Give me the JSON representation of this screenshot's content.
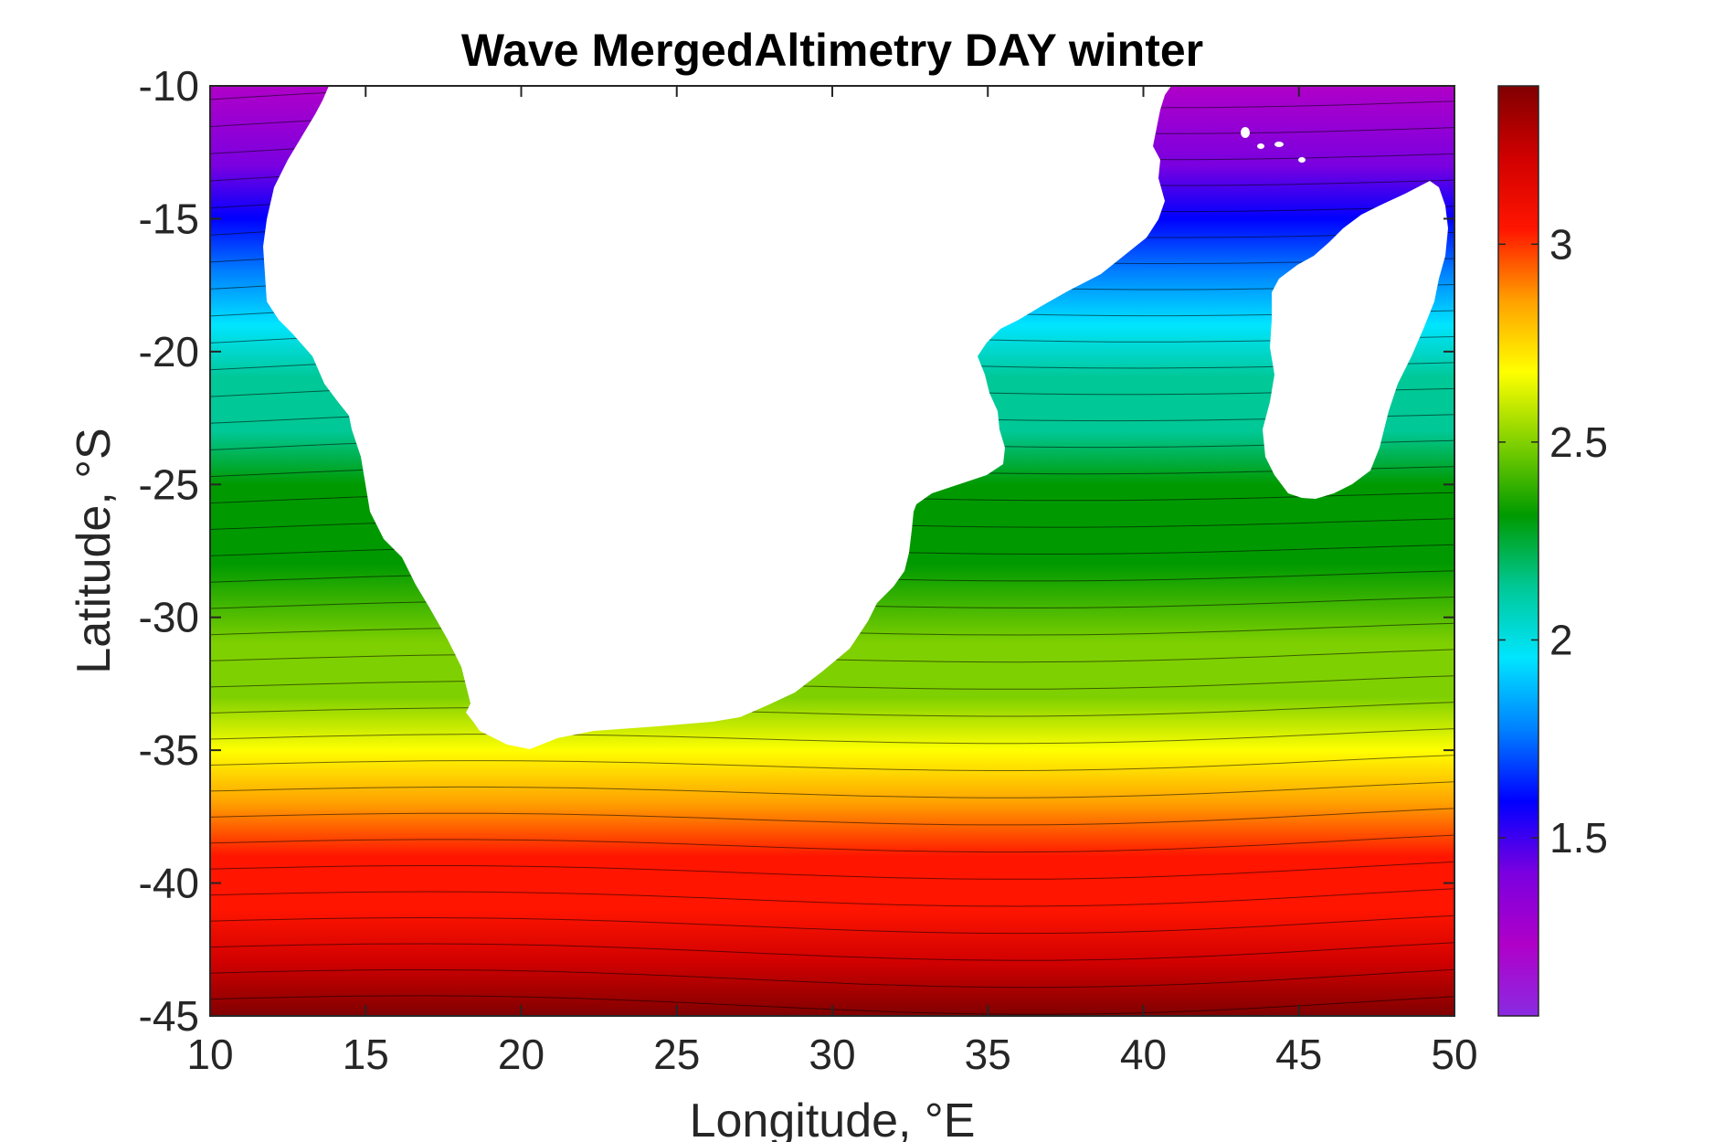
{
  "chart_data": {
    "type": "heatmap",
    "title": "Wave MergedAltimetry DAY winter",
    "xlabel": "Longitude, °E",
    "ylabel": "Latitude, °S",
    "xlim": [
      10,
      50
    ],
    "ylim": [
      -45,
      -10
    ],
    "x_ticks": [
      "10",
      "15",
      "20",
      "25",
      "30",
      "35",
      "40",
      "45",
      "50"
    ],
    "y_ticks": [
      "-10",
      "-15",
      "-20",
      "-25",
      "-30",
      "-35",
      "-40",
      "-45"
    ],
    "colorbar": {
      "range": [
        1.05,
        3.4
      ],
      "ticks": [
        "1.5",
        "2",
        "2.5",
        "3"
      ],
      "colormap": [
        "#8a2be2",
        "#b000c8",
        "#7a00e0",
        "#0000ff",
        "#0080ff",
        "#00e5ff",
        "#00c896",
        "#009a00",
        "#7fd000",
        "#ffff00",
        "#ffa000",
        "#ff1500",
        "#d00000",
        "#800000"
      ]
    },
    "contour_bands": [
      {
        "lat": -10,
        "value": 1.25
      },
      {
        "lat": -13,
        "value": 1.4
      },
      {
        "lat": -15,
        "value": 1.6
      },
      {
        "lat": -17,
        "value": 1.75
      },
      {
        "lat": -19,
        "value": 1.9
      },
      {
        "lat": -21,
        "value": 2.05
      },
      {
        "lat": -23,
        "value": 2.15
      },
      {
        "lat": -25,
        "value": 2.25
      },
      {
        "lat": -28,
        "value": 2.35
      },
      {
        "lat": -31,
        "value": 2.45
      },
      {
        "lat": -33,
        "value": 2.55
      },
      {
        "lat": -35,
        "value": 2.65
      },
      {
        "lat": -37,
        "value": 2.8
      },
      {
        "lat": -39,
        "value": 2.95
      },
      {
        "lat": -41,
        "value": 3.1
      },
      {
        "lat": -43,
        "value": 3.25
      },
      {
        "lat": -45,
        "value": 3.35
      }
    ],
    "grid": false,
    "land_color": "#ffffff"
  }
}
